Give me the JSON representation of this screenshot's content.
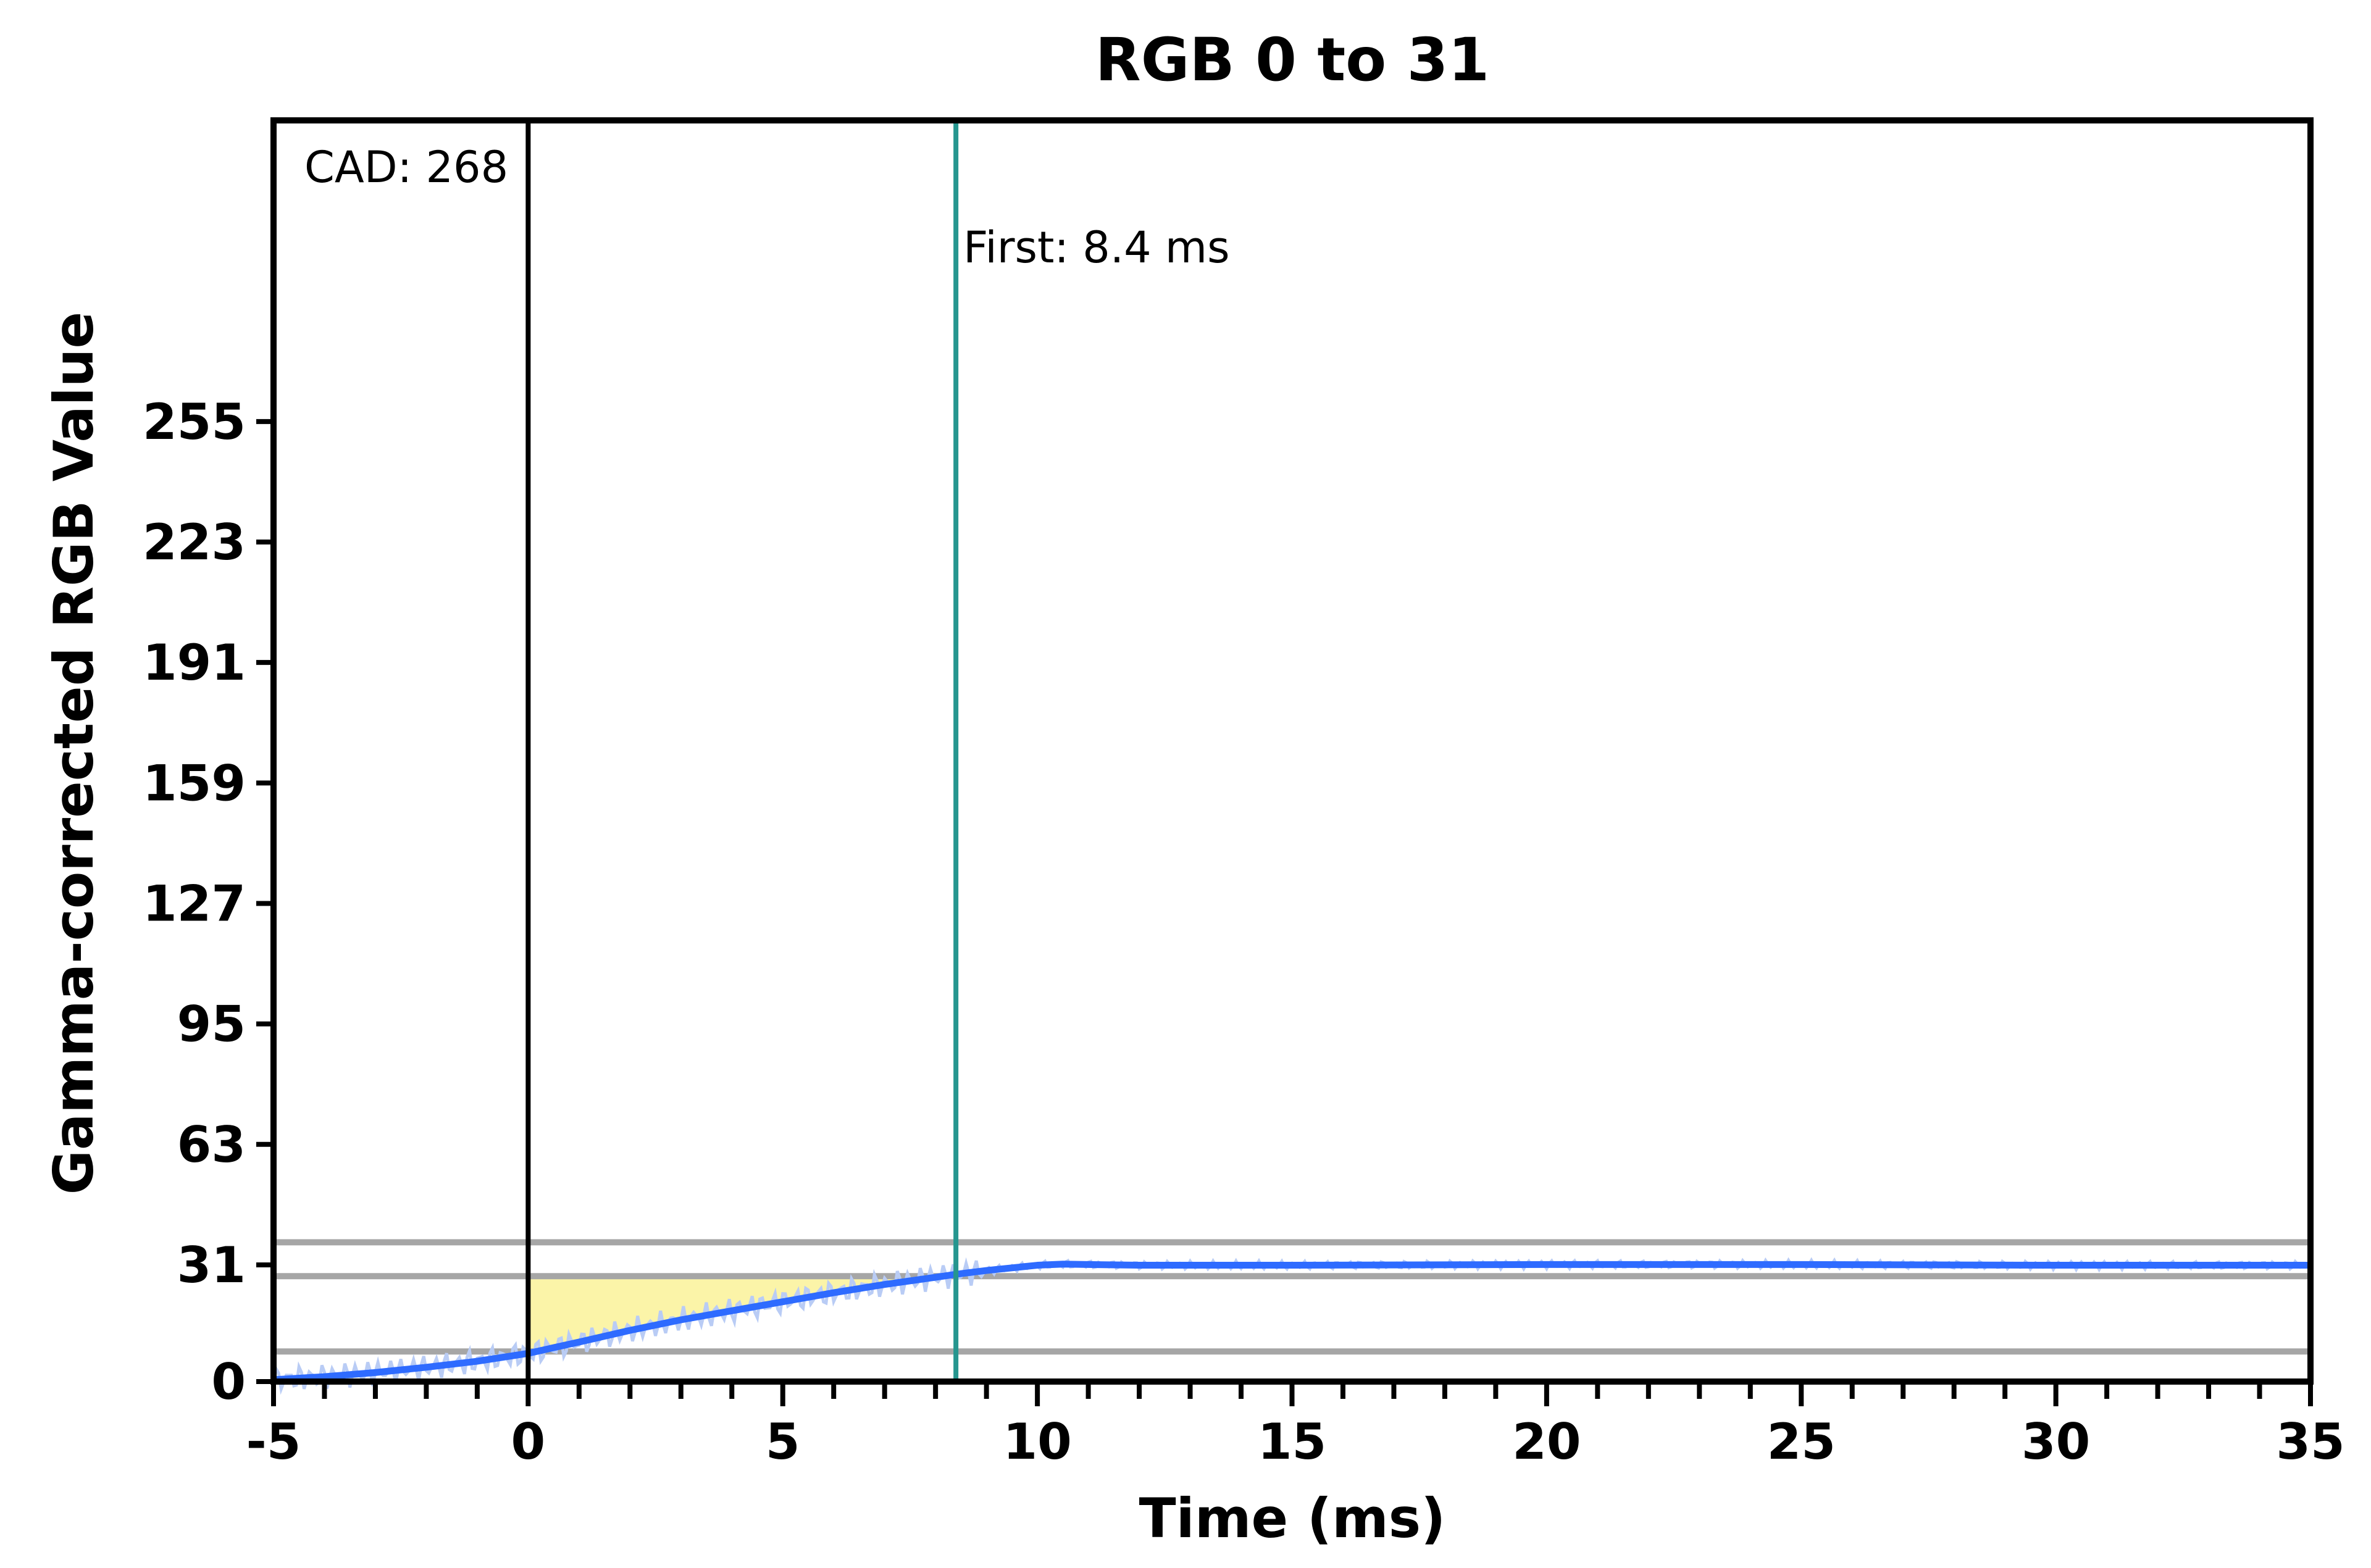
{
  "chart_data": {
    "type": "line",
    "title": "RGB 0 to 31",
    "xlabel": "Time (ms)",
    "ylabel": "Gamma-corrected RGB Value",
    "xlim": [
      -5,
      35
    ],
    "ylim": [
      0,
      335
    ],
    "x_ticks": [
      -5,
      0,
      5,
      10,
      15,
      20,
      25,
      30,
      35
    ],
    "x_tick_labels": [
      "-5",
      "0",
      "5",
      "10",
      "15",
      "20",
      "25",
      "30",
      "35"
    ],
    "x_minor_step": 1,
    "y_ticks": [
      0,
      31,
      63,
      95,
      127,
      159,
      191,
      223,
      255
    ],
    "y_tick_labels": [
      "0",
      "31",
      "63",
      "95",
      "127",
      "159",
      "191",
      "223",
      "255"
    ],
    "grid": false,
    "reference_lines": {
      "horizontal": [
        37,
        28,
        8
      ],
      "vertical_start": 0,
      "vertical_first": 8.4
    },
    "shaded_region": {
      "x_from": 0,
      "x_to": 8.4,
      "upper": 28
    },
    "annotations": {
      "cad": "CAD: 268",
      "first": "First: 8.4 ms"
    },
    "series": [
      {
        "x": [
          -5,
          -4,
          -3,
          -2,
          -1,
          0,
          1,
          2,
          3,
          4,
          5,
          6,
          7,
          8,
          8.4,
          9,
          9.5,
          10,
          10.5,
          11,
          12,
          15,
          20,
          25,
          30,
          35
        ],
        "y": [
          0.5,
          1.3,
          2.4,
          3.8,
          5.4,
          7.5,
          10.5,
          13.6,
          16.4,
          18.8,
          21.2,
          23.6,
          25.8,
          27.7,
          28.5,
          29.5,
          30.2,
          30.9,
          31.2,
          31.1,
          30.9,
          30.9,
          31.1,
          31.1,
          30.9,
          30.9
        ]
      }
    ],
    "colors": {
      "series_line": "#2e6bff",
      "series_noise": "#b9ccf5",
      "reference": "#a6a6a6",
      "first_line": "#26968f",
      "start_line": "#000000",
      "shade": "#fbf4a8",
      "frame": "#000000"
    }
  }
}
